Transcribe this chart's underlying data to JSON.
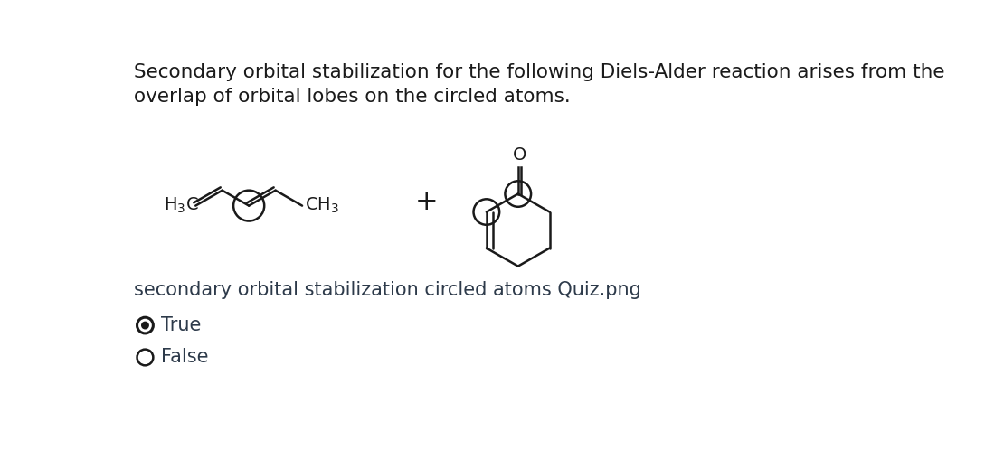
{
  "title_line1": "Secondary orbital stabilization for the following Diels-Alder reaction arises from the",
  "title_line2": "overlap of orbital lobes on the circled atoms.",
  "caption": "secondary orbital stabilization circled atoms Quiz.png",
  "true_label": "True",
  "false_label": "False",
  "bg_color": "#ffffff",
  "text_color": "#2d3a4a",
  "title_fontsize": 15.5,
  "caption_fontsize": 15,
  "option_fontsize": 15,
  "fig_width": 11.1,
  "fig_height": 4.98
}
